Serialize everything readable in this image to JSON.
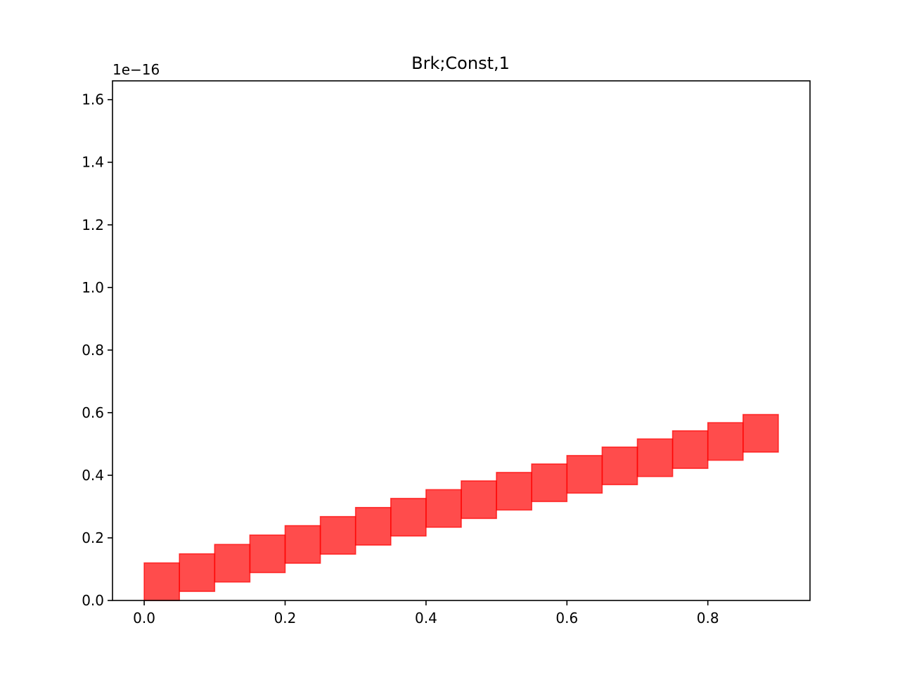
{
  "chart_data": {
    "type": "bar",
    "title": "Brk;Const,1",
    "xlabel": "",
    "ylabel": "",
    "y_offset_label": "1e−16",
    "xlim": [
      -0.045,
      0.945
    ],
    "ylim": [
      0.0,
      1.66
    ],
    "x_ticks": [
      0.0,
      0.2,
      0.4,
      0.6,
      0.8
    ],
    "x_tick_labels": [
      "0.0",
      "0.2",
      "0.4",
      "0.6",
      "0.8"
    ],
    "y_ticks": [
      0.0,
      0.2,
      0.4,
      0.6,
      0.8,
      1.0,
      1.2,
      1.4,
      1.6
    ],
    "y_tick_labels": [
      "0.0",
      "0.2",
      "0.4",
      "0.6",
      "0.8",
      "1.0",
      "1.2",
      "1.4",
      "1.6"
    ],
    "grid": false,
    "bar_width": 0.05,
    "bar_color": "#ff0000",
    "bar_alpha": 0.7,
    "bars": [
      {
        "x": 0.0,
        "bottom": 0.0,
        "top": 0.12
      },
      {
        "x": 0.05,
        "bottom": 0.029,
        "top": 0.149
      },
      {
        "x": 0.1,
        "bottom": 0.059,
        "top": 0.179
      },
      {
        "x": 0.15,
        "bottom": 0.089,
        "top": 0.209
      },
      {
        "x": 0.2,
        "bottom": 0.119,
        "top": 0.239
      },
      {
        "x": 0.25,
        "bottom": 0.148,
        "top": 0.268
      },
      {
        "x": 0.3,
        "bottom": 0.177,
        "top": 0.297
      },
      {
        "x": 0.35,
        "bottom": 0.206,
        "top": 0.326
      },
      {
        "x": 0.4,
        "bottom": 0.234,
        "top": 0.354
      },
      {
        "x": 0.45,
        "bottom": 0.262,
        "top": 0.382
      },
      {
        "x": 0.5,
        "bottom": 0.289,
        "top": 0.409
      },
      {
        "x": 0.55,
        "bottom": 0.316,
        "top": 0.436
      },
      {
        "x": 0.6,
        "bottom": 0.343,
        "top": 0.463
      },
      {
        "x": 0.65,
        "bottom": 0.37,
        "top": 0.49
      },
      {
        "x": 0.7,
        "bottom": 0.396,
        "top": 0.516
      },
      {
        "x": 0.75,
        "bottom": 0.422,
        "top": 0.542
      },
      {
        "x": 0.8,
        "bottom": 0.448,
        "top": 0.568
      },
      {
        "x": 0.85,
        "bottom": 0.474,
        "top": 0.594
      }
    ]
  }
}
